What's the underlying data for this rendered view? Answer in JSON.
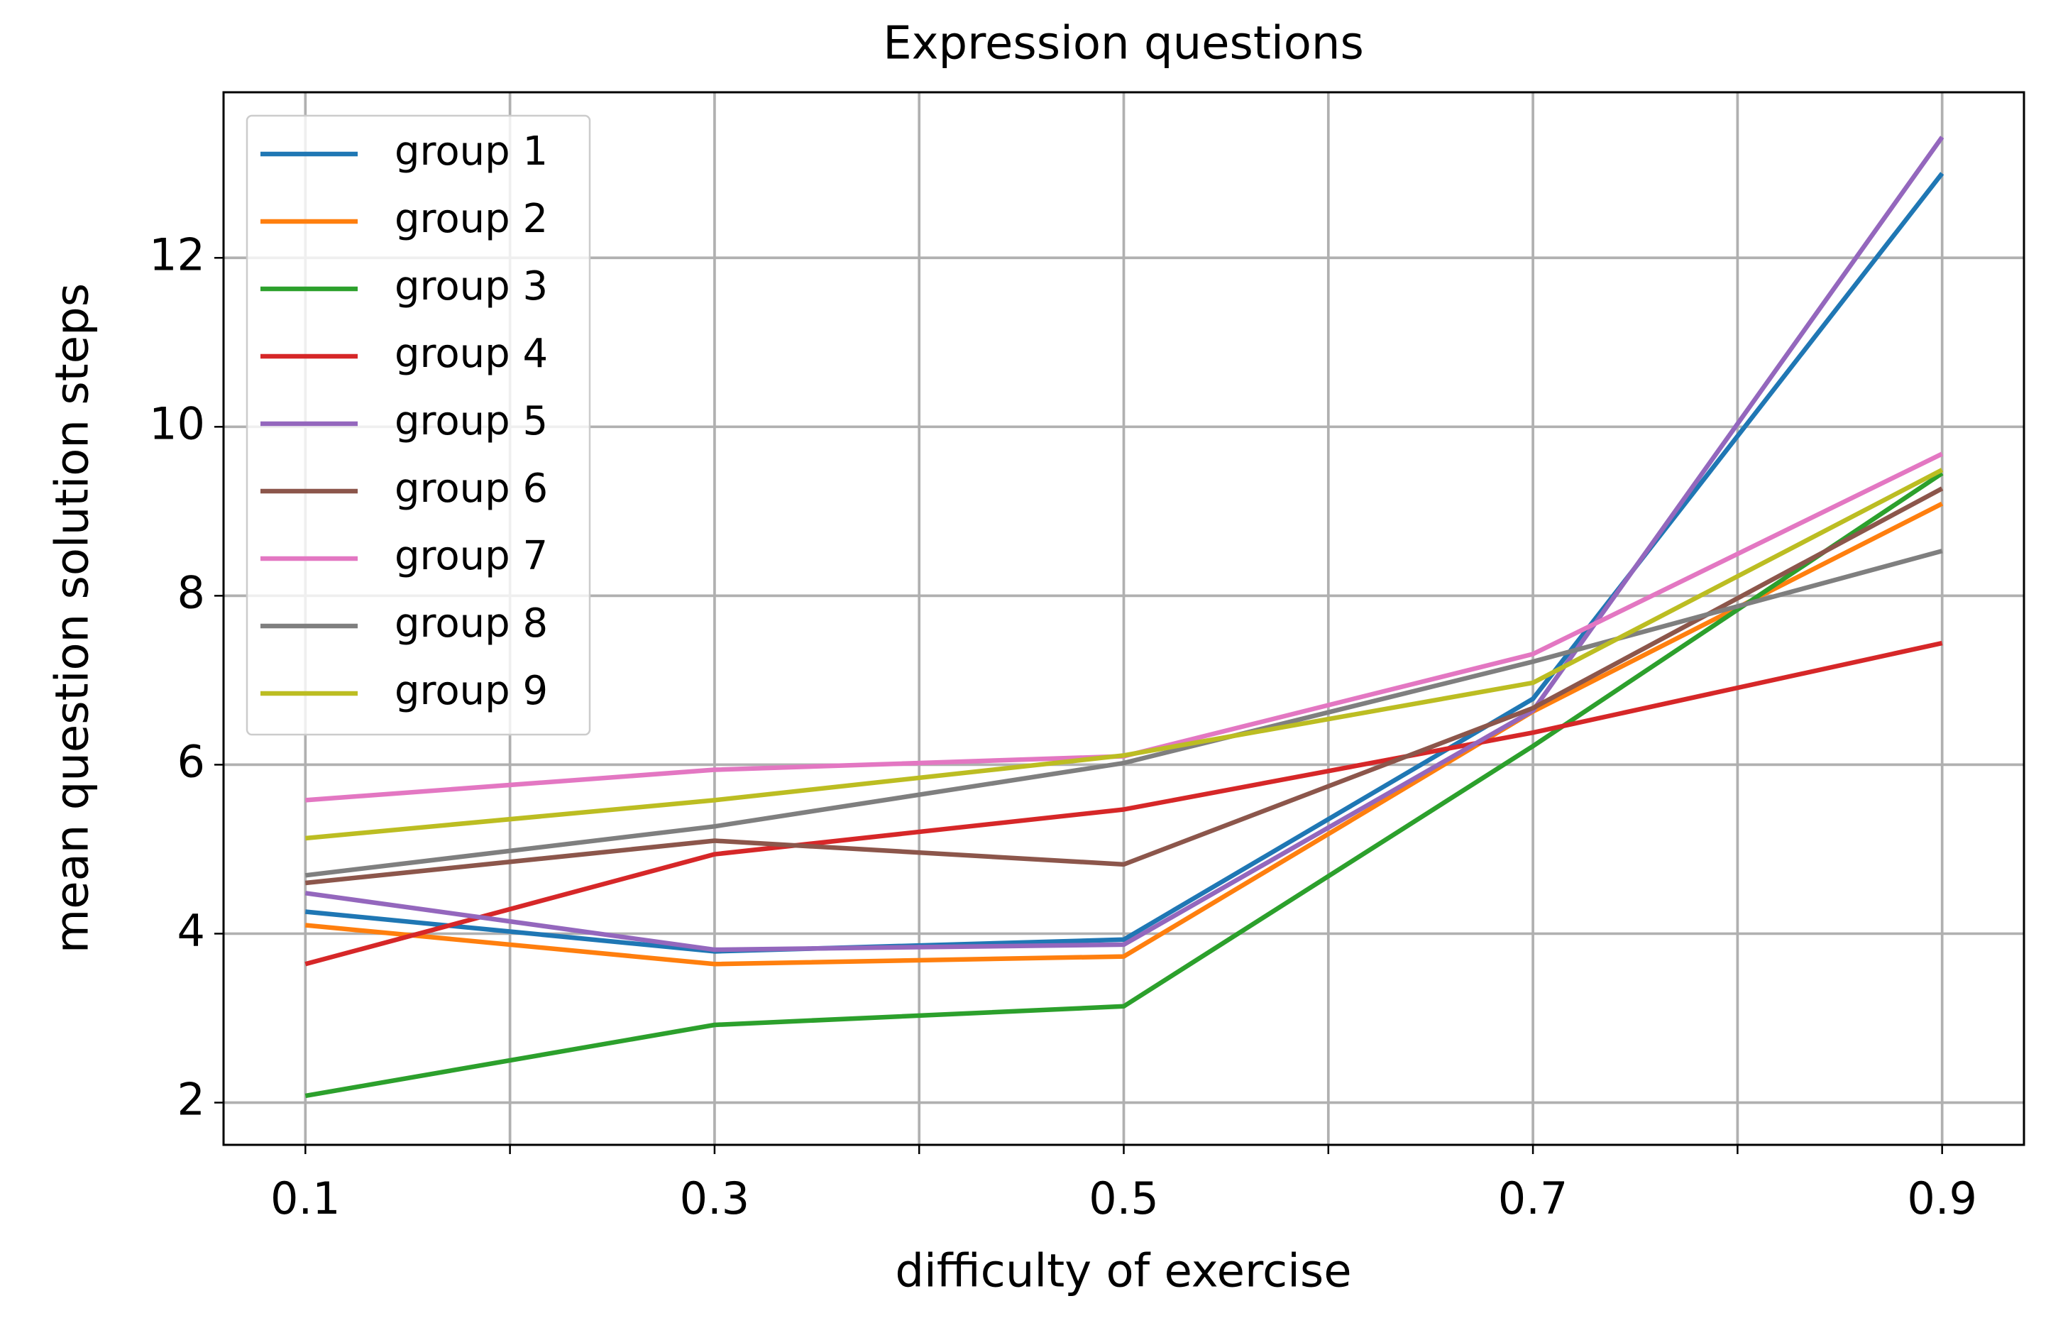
{
  "chart_data": {
    "type": "line",
    "title": "Expression questions",
    "xlabel": "difficulty of exercise",
    "ylabel": "mean question solution steps",
    "x": [
      0.1,
      0.3,
      0.5,
      0.7,
      0.9
    ],
    "series": [
      {
        "name": "group 1",
        "color": "#1f77b4",
        "values": [
          4.26,
          3.79,
          3.93,
          6.78,
          13.0
        ]
      },
      {
        "name": "group 2",
        "color": "#ff7f0e",
        "values": [
          4.1,
          3.64,
          3.73,
          6.63,
          9.09
        ]
      },
      {
        "name": "group 3",
        "color": "#2ca02c",
        "values": [
          2.08,
          2.92,
          3.14,
          6.22,
          9.45
        ]
      },
      {
        "name": "group 4",
        "color": "#d62728",
        "values": [
          3.64,
          4.94,
          5.47,
          6.38,
          7.44
        ]
      },
      {
        "name": "group 5",
        "color": "#9467bd",
        "values": [
          4.48,
          3.81,
          3.87,
          6.64,
          13.43
        ]
      },
      {
        "name": "group 6",
        "color": "#8c564b",
        "values": [
          4.6,
          5.1,
          4.82,
          6.67,
          9.27
        ]
      },
      {
        "name": "group 7",
        "color": "#e377c2",
        "values": [
          5.58,
          5.94,
          6.1,
          7.31,
          9.68
        ]
      },
      {
        "name": "group 8",
        "color": "#7f7f7f",
        "values": [
          4.69,
          5.27,
          6.02,
          7.22,
          8.53
        ]
      },
      {
        "name": "group 9",
        "color": "#bcbd22",
        "values": [
          5.13,
          5.58,
          6.11,
          6.97,
          9.49
        ]
      }
    ],
    "xlim": [
      0.06,
      0.94
    ],
    "ylim": [
      1.5,
      13.96
    ],
    "xticks": [
      0.1,
      0.3,
      0.5,
      0.7,
      0.9
    ],
    "x_minor_ticks": [
      0.2,
      0.4,
      0.6,
      0.8
    ],
    "yticks": [
      2,
      4,
      6,
      8,
      10,
      12
    ],
    "grid": true,
    "legend": "upper left"
  }
}
